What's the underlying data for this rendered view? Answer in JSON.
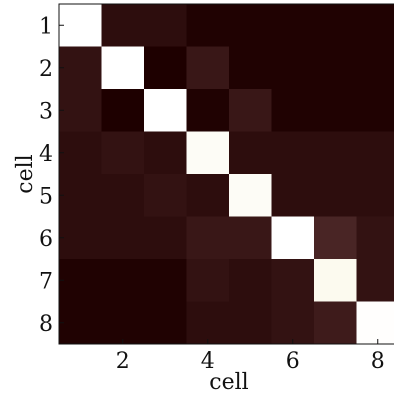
{
  "chart_data": {
    "type": "heatmap",
    "title": "",
    "xlabel": "cell",
    "ylabel": "cell",
    "x_ticks": [
      "2",
      "4",
      "6",
      "8"
    ],
    "y_ticks": [
      "1",
      "2",
      "3",
      "4",
      "5",
      "6",
      "7",
      "8"
    ],
    "rows": [
      "1",
      "2",
      "3",
      "4",
      "5",
      "6",
      "7",
      "8"
    ],
    "cols": [
      "1",
      "2",
      "3",
      "4",
      "5",
      "6",
      "7",
      "8"
    ],
    "values": [
      [
        1.0,
        0.12,
        0.12,
        0.02,
        0.02,
        0.02,
        0.02,
        0.02
      ],
      [
        0.17,
        1.0,
        0.0,
        0.22,
        0.02,
        0.02,
        0.02,
        0.02
      ],
      [
        0.17,
        0.0,
        1.0,
        0.02,
        0.22,
        0.02,
        0.02,
        0.02
      ],
      [
        0.12,
        0.17,
        0.12,
        0.96,
        0.12,
        0.12,
        0.12,
        0.12
      ],
      [
        0.12,
        0.12,
        0.17,
        0.12,
        0.96,
        0.12,
        0.12,
        0.12
      ],
      [
        0.12,
        0.12,
        0.12,
        0.22,
        0.22,
        1.0,
        0.35,
        0.17
      ],
      [
        0.02,
        0.02,
        0.02,
        0.17,
        0.12,
        0.17,
        0.93,
        0.17
      ],
      [
        0.02,
        0.02,
        0.02,
        0.12,
        0.12,
        0.17,
        0.26,
        0.99
      ]
    ],
    "vmin": 0,
    "vmax": 1,
    "colormap": [
      "#1e0000",
      "#4a2626",
      "#ffffff"
    ],
    "highlight_color": "#fbf8e8",
    "grid": false,
    "legend": "none"
  }
}
